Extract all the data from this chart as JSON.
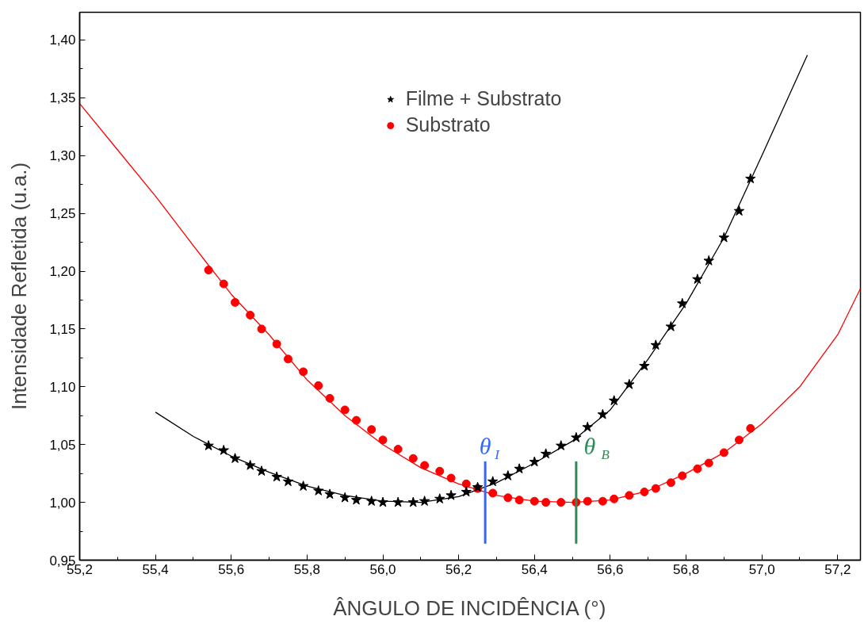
{
  "chart_data": {
    "type": "scatter",
    "xlabel": "ÂNGULO DE INCIDÊNCIA (°)",
    "ylabel": "Intensidade Refletida (u.a.)",
    "x": [
      55.54,
      55.58,
      55.61,
      55.65,
      55.68,
      55.72,
      55.75,
      55.79,
      55.83,
      55.86,
      55.9,
      55.93,
      55.97,
      56.0,
      56.04,
      56.08,
      56.11,
      56.15,
      56.18,
      56.22,
      56.25,
      56.29,
      56.33,
      56.36,
      56.4,
      56.43,
      56.47,
      56.51,
      56.54,
      56.58,
      56.61,
      56.65,
      56.69,
      56.72,
      56.76,
      56.79,
      56.83,
      56.86,
      56.9,
      56.94,
      56.97
    ],
    "series": [
      {
        "name": "Filme + Substrato",
        "color": "#000000",
        "marker": "star",
        "values": [
          1.049,
          1.045,
          1.038,
          1.032,
          1.027,
          1.022,
          1.018,
          1.014,
          1.01,
          1.007,
          1.004,
          1.002,
          1.001,
          1.0,
          1.0,
          1.0,
          1.001,
          1.003,
          1.006,
          1.009,
          1.013,
          1.018,
          1.023,
          1.029,
          1.035,
          1.042,
          1.049,
          1.056,
          1.065,
          1.076,
          1.088,
          1.102,
          1.118,
          1.136,
          1.152,
          1.172,
          1.193,
          1.209,
          1.229,
          1.252,
          1.28
        ]
      },
      {
        "name": "Substrato",
        "color": "#ff0000",
        "marker": "circle",
        "values": [
          1.201,
          1.189,
          1.173,
          1.162,
          1.15,
          1.137,
          1.124,
          1.113,
          1.101,
          1.09,
          1.08,
          1.071,
          1.063,
          1.054,
          1.046,
          1.038,
          1.032,
          1.027,
          1.021,
          1.016,
          1.012,
          1.008,
          1.004,
          1.002,
          1.001,
          1.0,
          1.0,
          1.0,
          1.001,
          1.001,
          1.003,
          1.006,
          1.009,
          1.012,
          1.017,
          1.023,
          1.029,
          1.034,
          1.043,
          1.054,
          1.064
        ]
      },
      {
        "type": "line",
        "color": "#000000",
        "x": [
          55.4,
          55.5,
          55.6,
          55.7,
          55.8,
          55.9,
          56.0,
          56.1,
          56.2,
          56.3,
          56.4,
          56.5,
          56.6,
          56.7,
          56.8,
          56.9,
          57.0,
          57.12
        ],
        "values": [
          1.078,
          1.057,
          1.04,
          1.026,
          1.014,
          1.006,
          1.001,
          1.0,
          1.005,
          1.017,
          1.034,
          1.053,
          1.08,
          1.124,
          1.172,
          1.229,
          1.3,
          1.387
        ]
      },
      {
        "type": "line",
        "color": "#ff0000",
        "x": [
          55.2,
          55.3,
          55.4,
          55.5,
          55.6,
          55.7,
          55.8,
          55.9,
          56.0,
          56.1,
          56.2,
          56.3,
          56.4,
          56.5,
          56.6,
          56.7,
          56.8,
          56.9,
          57.0,
          57.1,
          57.2,
          57.26
        ],
        "values": [
          1.345,
          1.305,
          1.265,
          1.222,
          1.18,
          1.145,
          1.106,
          1.075,
          1.05,
          1.03,
          1.016,
          1.006,
          1.001,
          1.0,
          1.002,
          1.01,
          1.025,
          1.043,
          1.068,
          1.1,
          1.145,
          1.185
        ]
      }
    ],
    "ref_lines": [
      {
        "axis": "x",
        "value": 56.27,
        "label": "θ$_{I}$",
        "color": "#3366ff"
      },
      {
        "axis": "x",
        "value": 56.51,
        "label": "θ$_{B}$",
        "color": "#2e8b57"
      }
    ],
    "xlim": [
      55.2,
      57.26
    ],
    "ylim": [
      0.95,
      1.424
    ],
    "xticks": [
      {
        "value": 55.2,
        "label": "55,2"
      },
      {
        "value": 55.4,
        "label": "55,4"
      },
      {
        "value": 55.6,
        "label": "55,6"
      },
      {
        "value": 55.8,
        "label": "55,8"
      },
      {
        "value": 56.0,
        "label": "56,0"
      },
      {
        "value": 56.2,
        "label": "56,2"
      },
      {
        "value": 56.4,
        "label": "56,4"
      },
      {
        "value": 56.6,
        "label": "56,6"
      },
      {
        "value": 56.8,
        "label": "56,8"
      },
      {
        "value": 57.0,
        "label": "57,0"
      },
      {
        "value": 57.2,
        "label": "57,2"
      }
    ],
    "yticks": [
      {
        "value": 0.95,
        "label": "0,95"
      },
      {
        "value": 1.0,
        "label": "1,00"
      },
      {
        "value": 1.05,
        "label": "1,05"
      },
      {
        "value": 1.1,
        "label": "1,10"
      },
      {
        "value": 1.15,
        "label": "1,15"
      },
      {
        "value": 1.2,
        "label": "1,20"
      },
      {
        "value": 1.25,
        "label": "1,25"
      },
      {
        "value": 1.3,
        "label": "1,30"
      },
      {
        "value": 1.35,
        "label": "1,35"
      },
      {
        "value": 1.4,
        "label": "1,40"
      }
    ],
    "grid": false,
    "legend": "top"
  }
}
